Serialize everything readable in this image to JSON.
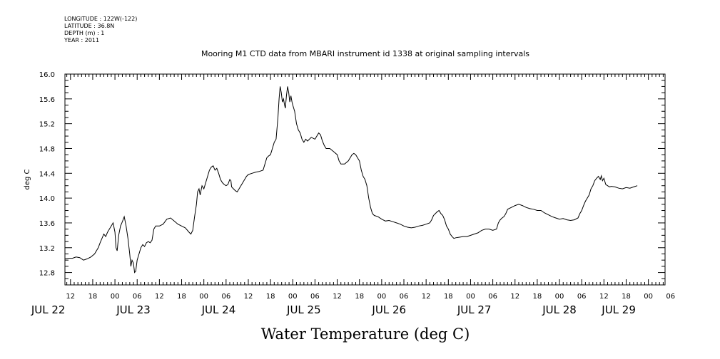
{
  "meta": {
    "longitude": "LONGITUDE : 122W(-122)",
    "latitude": "LATITUDE : 36.8N",
    "depth": "DEPTH (m) : 1",
    "year": "YEAR : 2011"
  },
  "chart_data": {
    "type": "line",
    "title": "Mooring M1 CTD data from MBARI instrument id 1338 at original sampling intervals",
    "xlabel": "Water Temperature (deg C)",
    "ylabel": "deg C",
    "ylim": [
      12.6,
      16.0
    ],
    "xlim": [
      10.5,
      172.5
    ],
    "x_unit": "hours since 2011-07-22 00:00",
    "grid": false,
    "yticks": [
      "12.8",
      "13.2",
      "13.6",
      "14.0",
      "14.4",
      "14.8",
      "15.2",
      "15.6",
      "16.0"
    ],
    "xhour_ticks": [
      "12",
      "18",
      "00",
      "06",
      "12",
      "18",
      "00",
      "06",
      "12",
      "18",
      "00",
      "06",
      "12",
      "18",
      "00",
      "06",
      "12",
      "18",
      "00",
      "06",
      "12",
      "18",
      "00",
      "06",
      "12",
      "18",
      "00",
      "06"
    ],
    "date_labels": [
      {
        "label": "JUL 22",
        "x": 6
      },
      {
        "label": "JUL 23",
        "x": 29
      },
      {
        "label": "JUL 24",
        "x": 52
      },
      {
        "label": "JUL 25",
        "x": 75
      },
      {
        "label": "JUL 26",
        "x": 98
      },
      {
        "label": "JUL 27",
        "x": 121
      },
      {
        "label": "JUL 28",
        "x": 144
      },
      {
        "label": "JUL 29",
        "x": 160
      }
    ],
    "series": [
      {
        "color": "#000000",
        "points": [
          [
            10.5,
            13.02
          ],
          [
            11.5,
            13.03
          ],
          [
            12.5,
            13.03
          ],
          [
            13.5,
            13.05
          ],
          [
            14.5,
            13.04
          ],
          [
            15.5,
            13.0
          ],
          [
            16.5,
            13.02
          ],
          [
            17.5,
            13.05
          ],
          [
            18.5,
            13.1
          ],
          [
            19.5,
            13.2
          ],
          [
            20.0,
            13.28
          ],
          [
            20.5,
            13.35
          ],
          [
            21.0,
            13.42
          ],
          [
            21.5,
            13.38
          ],
          [
            22.0,
            13.45
          ],
          [
            22.5,
            13.5
          ],
          [
            23.0,
            13.55
          ],
          [
            23.5,
            13.6
          ],
          [
            24.0,
            13.45
          ],
          [
            24.3,
            13.2
          ],
          [
            24.6,
            13.15
          ],
          [
            25.0,
            13.4
          ],
          [
            25.5,
            13.55
          ],
          [
            26.0,
            13.62
          ],
          [
            26.5,
            13.7
          ],
          [
            27.0,
            13.55
          ],
          [
            27.5,
            13.35
          ],
          [
            28.0,
            13.1
          ],
          [
            28.3,
            12.9
          ],
          [
            28.6,
            13.0
          ],
          [
            29.0,
            12.95
          ],
          [
            29.3,
            12.8
          ],
          [
            29.6,
            12.82
          ],
          [
            30.0,
            13.0
          ],
          [
            30.5,
            13.1
          ],
          [
            31.0,
            13.2
          ],
          [
            31.5,
            13.25
          ],
          [
            32.0,
            13.22
          ],
          [
            32.5,
            13.28
          ],
          [
            33.0,
            13.3
          ],
          [
            33.5,
            13.28
          ],
          [
            34.0,
            13.32
          ],
          [
            34.5,
            13.5
          ],
          [
            35.0,
            13.55
          ],
          [
            36.0,
            13.55
          ],
          [
            37.0,
            13.58
          ],
          [
            38.0,
            13.66
          ],
          [
            39.0,
            13.68
          ],
          [
            40.0,
            13.63
          ],
          [
            41.0,
            13.58
          ],
          [
            42.0,
            13.55
          ],
          [
            43.0,
            13.52
          ],
          [
            44.0,
            13.45
          ],
          [
            44.5,
            13.42
          ],
          [
            45.0,
            13.48
          ],
          [
            45.5,
            13.7
          ],
          [
            46.0,
            13.9
          ],
          [
            46.3,
            14.1
          ],
          [
            46.7,
            14.15
          ],
          [
            47.0,
            14.05
          ],
          [
            47.5,
            14.2
          ],
          [
            48.0,
            14.15
          ],
          [
            48.5,
            14.25
          ],
          [
            49.0,
            14.35
          ],
          [
            49.5,
            14.45
          ],
          [
            50.0,
            14.5
          ],
          [
            50.5,
            14.52
          ],
          [
            51.0,
            14.45
          ],
          [
            51.5,
            14.48
          ],
          [
            52.0,
            14.4
          ],
          [
            52.5,
            14.3
          ],
          [
            53.0,
            14.25
          ],
          [
            53.5,
            14.22
          ],
          [
            54.0,
            14.2
          ],
          [
            54.5,
            14.22
          ],
          [
            55.0,
            14.3
          ],
          [
            55.3,
            14.28
          ],
          [
            55.5,
            14.18
          ],
          [
            56.0,
            14.15
          ],
          [
            56.5,
            14.12
          ],
          [
            57.0,
            14.1
          ],
          [
            57.5,
            14.15
          ],
          [
            58.0,
            14.2
          ],
          [
            58.5,
            14.25
          ],
          [
            59.0,
            14.3
          ],
          [
            59.5,
            14.35
          ],
          [
            60.0,
            14.38
          ],
          [
            61.0,
            14.4
          ],
          [
            62.0,
            14.42
          ],
          [
            63.0,
            14.43
          ],
          [
            64.0,
            14.45
          ],
          [
            64.5,
            14.55
          ],
          [
            65.0,
            14.65
          ],
          [
            65.5,
            14.68
          ],
          [
            66.0,
            14.7
          ],
          [
            66.5,
            14.8
          ],
          [
            67.0,
            14.9
          ],
          [
            67.5,
            14.95
          ],
          [
            68.0,
            15.3
          ],
          [
            68.3,
            15.6
          ],
          [
            68.6,
            15.8
          ],
          [
            68.9,
            15.7
          ],
          [
            69.2,
            15.55
          ],
          [
            69.5,
            15.6
          ],
          [
            69.8,
            15.5
          ],
          [
            70.0,
            15.45
          ],
          [
            70.3,
            15.65
          ],
          [
            70.6,
            15.8
          ],
          [
            70.9,
            15.7
          ],
          [
            71.2,
            15.55
          ],
          [
            71.5,
            15.65
          ],
          [
            71.8,
            15.55
          ],
          [
            72.0,
            15.5
          ],
          [
            72.5,
            15.4
          ],
          [
            73.0,
            15.2
          ],
          [
            73.5,
            15.1
          ],
          [
            74.0,
            15.05
          ],
          [
            74.5,
            14.95
          ],
          [
            75.0,
            14.9
          ],
          [
            75.5,
            14.95
          ],
          [
            76.0,
            14.92
          ],
          [
            77.0,
            14.98
          ],
          [
            78.0,
            14.95
          ],
          [
            79.0,
            15.05
          ],
          [
            79.5,
            15.02
          ],
          [
            80.0,
            14.92
          ],
          [
            80.5,
            14.85
          ],
          [
            81.0,
            14.8
          ],
          [
            82.0,
            14.8
          ],
          [
            83.0,
            14.75
          ],
          [
            84.0,
            14.7
          ],
          [
            84.5,
            14.6
          ],
          [
            85.0,
            14.55
          ],
          [
            86.0,
            14.55
          ],
          [
            87.0,
            14.6
          ],
          [
            88.0,
            14.7
          ],
          [
            88.5,
            14.72
          ],
          [
            89.0,
            14.7
          ],
          [
            90.0,
            14.6
          ],
          [
            90.5,
            14.45
          ],
          [
            91.0,
            14.35
          ],
          [
            91.5,
            14.3
          ],
          [
            92.0,
            14.2
          ],
          [
            92.5,
            14.0
          ],
          [
            93.0,
            13.85
          ],
          [
            93.5,
            13.75
          ],
          [
            94.0,
            13.72
          ],
          [
            95.0,
            13.7
          ],
          [
            96.0,
            13.66
          ],
          [
            97.0,
            13.63
          ],
          [
            98.0,
            13.64
          ],
          [
            99.0,
            13.62
          ],
          [
            100.0,
            13.6
          ],
          [
            101.0,
            13.58
          ],
          [
            102.0,
            13.55
          ],
          [
            103.0,
            13.53
          ],
          [
            104.0,
            13.52
          ],
          [
            105.0,
            13.53
          ],
          [
            106.0,
            13.55
          ],
          [
            107.0,
            13.56
          ],
          [
            108.0,
            13.58
          ],
          [
            109.0,
            13.6
          ],
          [
            109.5,
            13.65
          ],
          [
            110.0,
            13.72
          ],
          [
            110.5,
            13.75
          ],
          [
            111.0,
            13.78
          ],
          [
            111.5,
            13.8
          ],
          [
            112.0,
            13.75
          ],
          [
            112.5,
            13.72
          ],
          [
            113.0,
            13.65
          ],
          [
            113.5,
            13.55
          ],
          [
            114.0,
            13.5
          ],
          [
            114.5,
            13.42
          ],
          [
            115.0,
            13.38
          ],
          [
            115.5,
            13.35
          ],
          [
            116.0,
            13.36
          ],
          [
            117.0,
            13.37
          ],
          [
            118.0,
            13.38
          ],
          [
            119.0,
            13.38
          ],
          [
            120.0,
            13.4
          ],
          [
            121.0,
            13.42
          ],
          [
            122.0,
            13.44
          ],
          [
            123.0,
            13.48
          ],
          [
            124.0,
            13.5
          ],
          [
            125.0,
            13.5
          ],
          [
            126.0,
            13.48
          ],
          [
            127.0,
            13.5
          ],
          [
            127.5,
            13.6
          ],
          [
            128.0,
            13.65
          ],
          [
            128.5,
            13.68
          ],
          [
            129.0,
            13.7
          ],
          [
            129.5,
            13.75
          ],
          [
            130.0,
            13.82
          ],
          [
            131.0,
            13.85
          ],
          [
            132.0,
            13.88
          ],
          [
            133.0,
            13.9
          ],
          [
            134.0,
            13.88
          ],
          [
            135.0,
            13.85
          ],
          [
            136.0,
            13.83
          ],
          [
            137.0,
            13.82
          ],
          [
            138.0,
            13.8
          ],
          [
            139.0,
            13.8
          ],
          [
            140.0,
            13.76
          ],
          [
            141.0,
            13.73
          ],
          [
            142.0,
            13.7
          ],
          [
            143.0,
            13.68
          ],
          [
            144.0,
            13.66
          ],
          [
            145.0,
            13.67
          ],
          [
            146.0,
            13.65
          ],
          [
            147.0,
            13.64
          ],
          [
            148.0,
            13.65
          ],
          [
            149.0,
            13.68
          ],
          [
            149.5,
            13.75
          ],
          [
            150.0,
            13.8
          ],
          [
            150.5,
            13.88
          ],
          [
            151.0,
            13.95
          ],
          [
            151.5,
            14.0
          ],
          [
            152.0,
            14.05
          ],
          [
            152.5,
            14.15
          ],
          [
            153.0,
            14.2
          ],
          [
            153.5,
            14.28
          ],
          [
            154.0,
            14.32
          ],
          [
            154.5,
            14.35
          ],
          [
            155.0,
            14.3
          ],
          [
            155.3,
            14.36
          ],
          [
            155.6,
            14.28
          ],
          [
            156.0,
            14.32
          ],
          [
            156.5,
            14.22
          ],
          [
            157.0,
            14.2
          ],
          [
            157.5,
            14.18
          ],
          [
            158.0,
            14.19
          ],
          [
            159.0,
            14.18
          ],
          [
            160.0,
            14.16
          ],
          [
            161.0,
            14.15
          ],
          [
            162.0,
            14.17
          ],
          [
            163.0,
            14.16
          ],
          [
            164.0,
            14.18
          ],
          [
            165.0,
            14.2
          ]
        ]
      }
    ]
  }
}
